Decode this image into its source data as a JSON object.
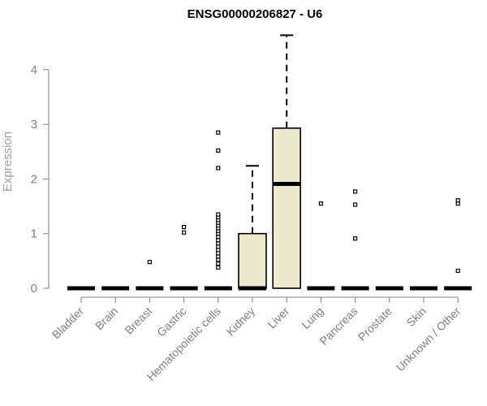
{
  "chart_data": {
    "type": "boxplot",
    "title": "ENSG00000206827 - U6",
    "xlabel": "",
    "ylabel": "Expression",
    "ylim": [
      0,
      4.6
    ],
    "yticks": [
      0,
      1,
      2,
      3,
      4
    ],
    "grid": false,
    "colors": {
      "box_fill": "#efe8cf",
      "box_stroke": "#000000",
      "axis": "#808080",
      "tick_text": "#808080"
    },
    "categories": [
      "Bladder",
      "Brain",
      "Breast",
      "Gastric",
      "Hematopoietic cells",
      "Kidney",
      "Liver",
      "Lung",
      "Pancreas",
      "Prostate",
      "Skin",
      "Unknown / Other"
    ],
    "boxes": [
      {
        "category": "Bladder",
        "whisker_low": 0,
        "q1": 0,
        "median": 0,
        "q3": 0,
        "whisker_high": 0,
        "outliers": []
      },
      {
        "category": "Brain",
        "whisker_low": 0,
        "q1": 0,
        "median": 0,
        "q3": 0,
        "whisker_high": 0,
        "outliers": []
      },
      {
        "category": "Breast",
        "whisker_low": 0,
        "q1": 0,
        "median": 0,
        "q3": 0,
        "whisker_high": 0,
        "outliers": [
          0.48
        ]
      },
      {
        "category": "Gastric",
        "whisker_low": 0,
        "q1": 0,
        "median": 0,
        "q3": 0,
        "whisker_high": 0,
        "outliers": [
          1.02,
          1.12
        ]
      },
      {
        "category": "Hematopoietic cells",
        "whisker_low": 0,
        "q1": 0,
        "median": 0,
        "q3": 0,
        "whisker_high": 0,
        "outliers": [
          0.38,
          0.45,
          0.52,
          0.58,
          0.64,
          0.7,
          0.76,
          0.82,
          0.88,
          0.94,
          1.0,
          1.05,
          1.1,
          1.15,
          1.2,
          1.25,
          1.3,
          1.35,
          2.2,
          2.52,
          2.85
        ]
      },
      {
        "category": "Kidney",
        "whisker_low": 0,
        "q1": 0,
        "median": 0,
        "q3": 1.0,
        "whisker_high": 2.24,
        "outliers": []
      },
      {
        "category": "Liver",
        "whisker_low": 0,
        "q1": 0,
        "median": 1.91,
        "q3": 2.93,
        "whisker_high": 4.63,
        "outliers": []
      },
      {
        "category": "Lung",
        "whisker_low": 0,
        "q1": 0,
        "median": 0,
        "q3": 0,
        "whisker_high": 0,
        "outliers": [
          1.55
        ]
      },
      {
        "category": "Pancreas",
        "whisker_low": 0,
        "q1": 0,
        "median": 0,
        "q3": 0,
        "whisker_high": 0,
        "outliers": [
          0.91,
          1.53,
          1.77
        ]
      },
      {
        "category": "Prostate",
        "whisker_low": 0,
        "q1": 0,
        "median": 0,
        "q3": 0,
        "whisker_high": 0,
        "outliers": []
      },
      {
        "category": "Skin",
        "whisker_low": 0,
        "q1": 0,
        "median": 0,
        "q3": 0,
        "whisker_high": 0,
        "outliers": []
      },
      {
        "category": "Unknown / Other",
        "whisker_low": 0,
        "q1": 0,
        "median": 0,
        "q3": 0,
        "whisker_high": 0,
        "outliers": [
          0.32,
          1.55,
          1.61
        ]
      }
    ]
  }
}
